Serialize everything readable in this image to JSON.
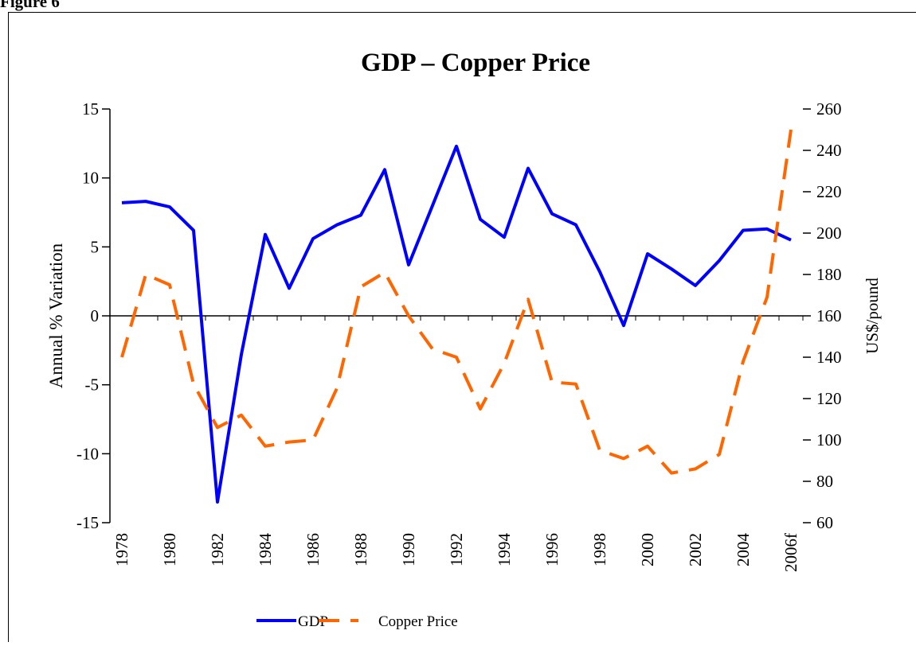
{
  "figure_label": "Figure 6",
  "chart_data": {
    "type": "line",
    "title": "GDP – Copper Price",
    "ylabel": "Annual % Variation",
    "y2label": "US$/pound",
    "categories": [
      "1978",
      null,
      "1980",
      null,
      "1982",
      null,
      "1984",
      null,
      "1986",
      null,
      "1988",
      null,
      "1990",
      null,
      "1992",
      null,
      "1994",
      null,
      "1996",
      null,
      "1998",
      null,
      "2000",
      null,
      "2002",
      null,
      "2004",
      null,
      "2006f"
    ],
    "series": [
      {
        "name": "GDP",
        "color": "#0000ff",
        "dash": false,
        "values": [
          8.2,
          8.3,
          7.9,
          6.2,
          -13.5,
          -2.8,
          5.9,
          2.0,
          5.6,
          6.6,
          7.3,
          10.6,
          3.7,
          8.0,
          12.3,
          7.0,
          5.7,
          10.7,
          7.4,
          6.6,
          3.2,
          -0.7,
          4.5,
          3.4,
          2.2,
          4.0,
          6.2,
          6.3,
          5.5
        ]
      },
      {
        "name": "Copper Price",
        "color": "#ff6600",
        "dash": true,
        "axis": "y2",
        "values": [
          140,
          180,
          175,
          127,
          106,
          112,
          97,
          99,
          100,
          125,
          174,
          181,
          160,
          144,
          140,
          115,
          137,
          168,
          128,
          127,
          95,
          91,
          97,
          84,
          86,
          93,
          138,
          169,
          250
        ]
      }
    ],
    "ylim": [
      -15,
      15
    ],
    "yticks": [
      -15,
      -10,
      -5,
      0,
      5,
      10,
      15
    ],
    "y2lim": [
      60,
      260
    ],
    "y2ticks": [
      60,
      80,
      100,
      120,
      140,
      160,
      180,
      200,
      220,
      240,
      260
    ],
    "legend": "bottom"
  }
}
